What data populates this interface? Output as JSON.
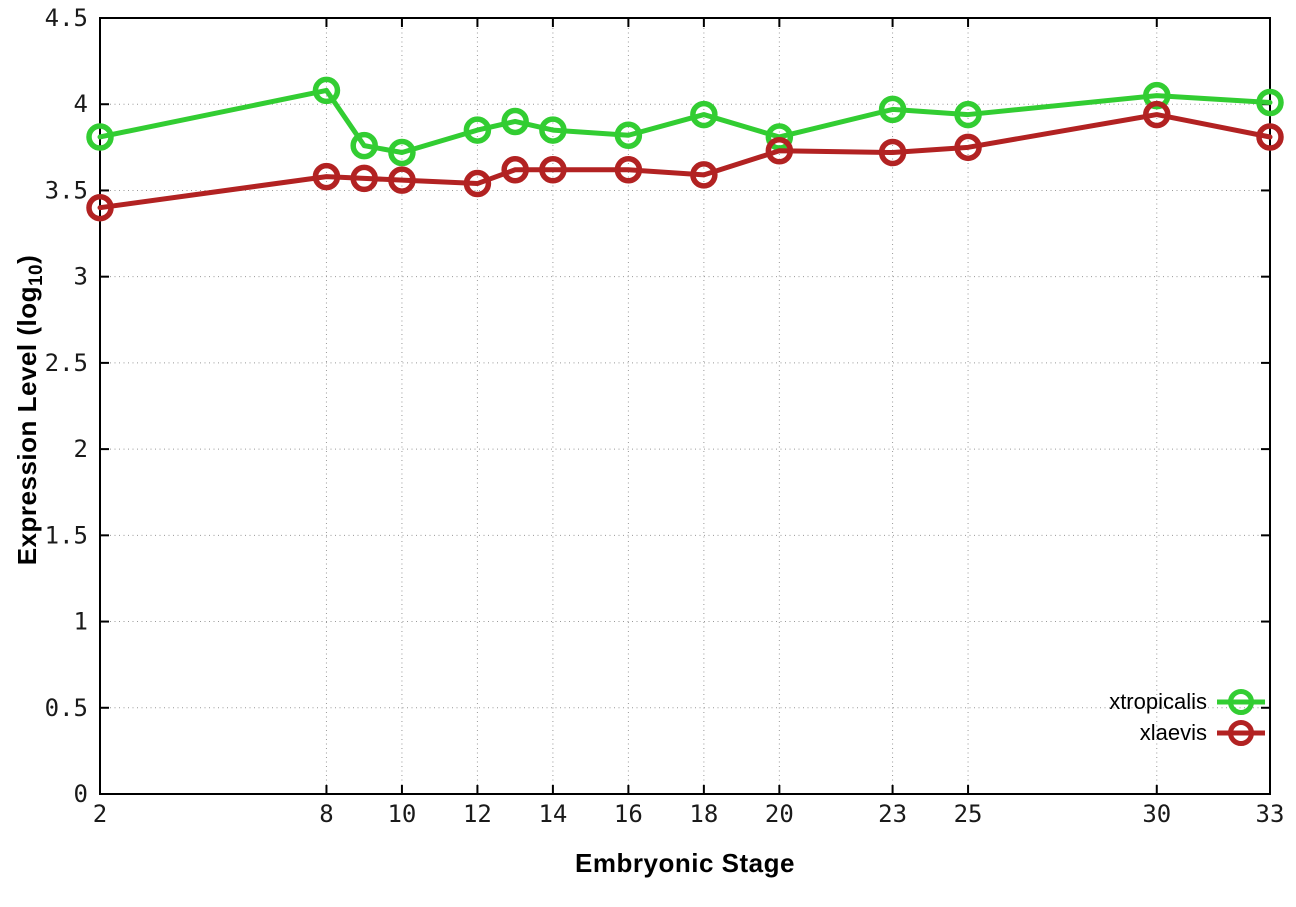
{
  "chart_data": {
    "type": "line",
    "title": "",
    "xlabel": "Embryonic Stage",
    "ylabel": "Expression Level (log10)",
    "ylabel_parts": {
      "prefix": "Expression Level (log",
      "sub": "10",
      "suffix": ")"
    },
    "x": [
      2,
      8,
      9,
      10,
      12,
      13,
      14,
      16,
      18,
      20,
      23,
      25,
      30,
      33
    ],
    "series": [
      {
        "name": "xtropicalis",
        "color": "#32cd32",
        "values": [
          3.81,
          4.08,
          3.76,
          3.72,
          3.85,
          3.9,
          3.85,
          3.82,
          3.94,
          3.81,
          3.97,
          3.94,
          4.05,
          4.01
        ]
      },
      {
        "name": "xlaevis",
        "color": "#b22222",
        "values": [
          3.4,
          3.58,
          3.57,
          3.56,
          3.54,
          3.62,
          3.62,
          3.62,
          3.59,
          3.73,
          3.72,
          3.75,
          3.94,
          3.81
        ]
      }
    ],
    "xlim": [
      2,
      33
    ],
    "ylim": [
      0,
      4.5
    ],
    "xticks": [
      2,
      8,
      10,
      12,
      14,
      16,
      18,
      20,
      23,
      25,
      30,
      33
    ],
    "yticks": [
      0,
      0.5,
      1,
      1.5,
      2,
      2.5,
      3,
      3.5,
      4,
      4.5
    ],
    "ytick_labels": [
      "0",
      "0.5",
      "1",
      "1.5",
      "2",
      "2.5",
      "3",
      "3.5",
      "4",
      "4.5"
    ],
    "grid": true,
    "grid_style": "dotted",
    "legend_position": "inside-bottom-right",
    "marker": "open-circle",
    "background": "#ffffff",
    "axis_color": "#000000",
    "grid_color": "#999999"
  }
}
